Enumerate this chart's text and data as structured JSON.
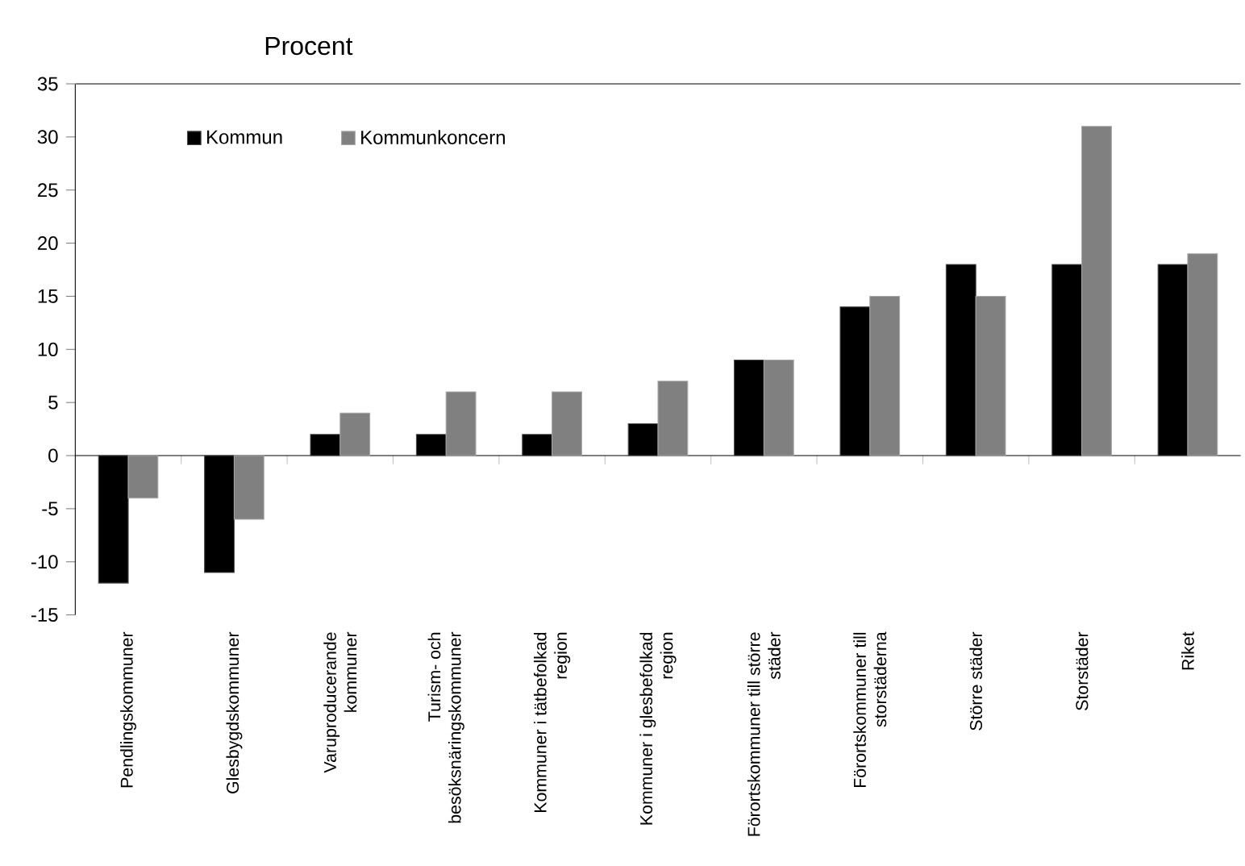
{
  "chart_data": {
    "type": "bar",
    "ylabel": "Procent",
    "categories": [
      "Pendlingskommuner",
      "Glesbygdskommuner",
      "Varuproducerande kommuner",
      "Turism- och besöksnäringskommuner",
      "Kommuner i tätbefolkad region",
      "Kommuner i glesbefolkad region",
      "Förortskommuner till större städer",
      "Förortskommuner till storstäderna",
      "Större städer",
      "Storstäder",
      "Riket"
    ],
    "series": [
      {
        "name": "Kommun",
        "color": "#000000",
        "values": [
          -12,
          -11,
          2,
          2,
          2,
          3,
          9,
          14,
          18,
          18,
          18
        ]
      },
      {
        "name": "Kommunkoncern",
        "color": "#808080",
        "values": [
          -4,
          -6,
          4,
          6,
          6,
          7,
          9,
          15,
          15,
          31,
          19
        ]
      }
    ],
    "ylim": [
      -15,
      35
    ],
    "yticks": [
      -15,
      -10,
      -5,
      0,
      5,
      10,
      15,
      20,
      25,
      30,
      35
    ],
    "legend": "top left"
  }
}
